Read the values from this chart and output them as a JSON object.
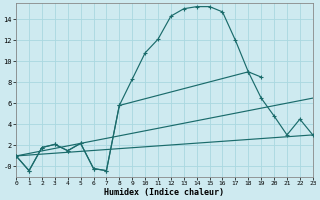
{
  "xlabel": "Humidex (Indice chaleur)",
  "background_color": "#ceeaf0",
  "grid_color": "#aad8e0",
  "line_color": "#1a6b6b",
  "xlim": [
    0,
    23
  ],
  "ylim": [
    -1.0,
    15.5
  ],
  "yticks": [
    0,
    2,
    4,
    6,
    8,
    10,
    12,
    14
  ],
  "ytick_labels": [
    "-0",
    "2",
    "4",
    "6",
    "8",
    "10",
    "12",
    "14"
  ],
  "xticks": [
    0,
    1,
    2,
    3,
    4,
    5,
    6,
    7,
    8,
    9,
    10,
    11,
    12,
    13,
    14,
    15,
    16,
    17,
    18,
    19,
    20,
    21,
    22,
    23
  ],
  "curve1_x": [
    0,
    1,
    2,
    3,
    4,
    5,
    6,
    7,
    8,
    9,
    10,
    11,
    12,
    13,
    14,
    15,
    16,
    17,
    18,
    19
  ],
  "curve1_y": [
    1.0,
    -0.4,
    1.8,
    2.1,
    1.5,
    2.2,
    -0.2,
    -0.4,
    5.8,
    8.3,
    10.8,
    12.1,
    14.3,
    15.0,
    15.2,
    15.2,
    14.7,
    12.0,
    9.0,
    8.5
  ],
  "curve2_x": [
    0,
    1,
    2,
    3,
    4,
    5,
    6,
    7,
    8,
    18,
    19,
    20,
    21,
    22,
    23
  ],
  "curve2_y": [
    1.0,
    -0.4,
    1.8,
    2.1,
    1.5,
    2.2,
    -0.2,
    -0.4,
    5.8,
    9.0,
    6.5,
    4.8,
    3.0,
    4.5,
    3.0
  ],
  "line1_x": [
    0,
    23
  ],
  "line1_y": [
    1.0,
    6.5
  ],
  "line2_x": [
    0,
    23
  ],
  "line2_y": [
    1.0,
    3.0
  ]
}
